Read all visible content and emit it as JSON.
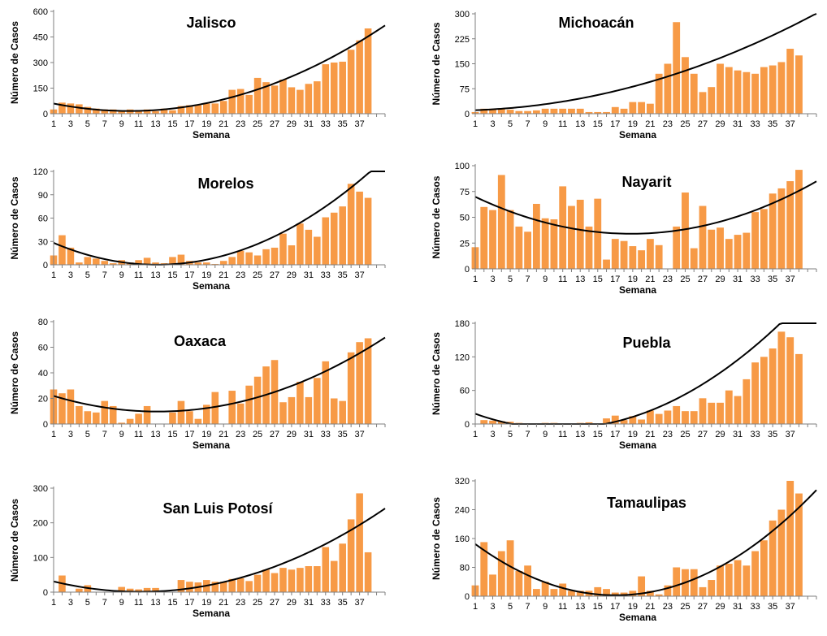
{
  "style": {
    "bar_color": "#F79A46",
    "trend_color": "#000000",
    "axis_color": "#7f7f7f"
  },
  "chart_data": [
    {
      "type": "bar",
      "title": "Jalisco",
      "xlabel": "Semana",
      "ylabel": "Número de Casos",
      "ylim": [
        0,
        600
      ],
      "yticks": [
        0,
        150,
        300,
        450,
        600
      ],
      "xlim": [
        1,
        40
      ],
      "x": [
        1,
        2,
        3,
        4,
        5,
        6,
        7,
        8,
        9,
        10,
        11,
        12,
        13,
        14,
        15,
        16,
        17,
        18,
        19,
        20,
        21,
        22,
        23,
        24,
        25,
        26,
        27,
        28,
        29,
        30,
        31,
        32,
        33,
        34,
        35,
        36,
        37,
        38
      ],
      "values": [
        25,
        65,
        60,
        55,
        40,
        30,
        25,
        25,
        20,
        25,
        20,
        25,
        15,
        30,
        20,
        45,
        50,
        50,
        60,
        60,
        75,
        140,
        145,
        110,
        210,
        185,
        165,
        200,
        155,
        140,
        175,
        190,
        290,
        300,
        305,
        375,
        430,
        500
      ],
      "trend": {
        "type": "polynomial",
        "coefficients": [
          70.0,
          -10.93,
          0.553
        ]
      }
    },
    {
      "type": "bar",
      "title": "Michoacán",
      "xlabel": "Semana",
      "ylabel": "Número de Casos",
      "ylim": [
        0,
        300
      ],
      "yticks": [
        0,
        75,
        150,
        225,
        300
      ],
      "xlim": [
        1,
        40
      ],
      "x": [
        1,
        2,
        3,
        4,
        5,
        6,
        7,
        8,
        9,
        10,
        11,
        12,
        13,
        14,
        15,
        16,
        17,
        18,
        19,
        20,
        21,
        22,
        23,
        24,
        25,
        26,
        27,
        28,
        29,
        30,
        31,
        32,
        33,
        34,
        35,
        36,
        37,
        38
      ],
      "values": [
        5,
        15,
        15,
        15,
        12,
        8,
        8,
        10,
        15,
        15,
        15,
        15,
        15,
        5,
        5,
        5,
        20,
        15,
        35,
        35,
        30,
        120,
        150,
        275,
        170,
        120,
        65,
        80,
        150,
        140,
        130,
        125,
        120,
        140,
        145,
        155,
        195,
        175
      ],
      "trend": {
        "type": "polynomial",
        "coefficients": [
          10.0,
          0.56,
          0.168
        ]
      }
    },
    {
      "type": "bar",
      "title": "Morelos",
      "xlabel": "Semana",
      "ylabel": "Número de Casos",
      "ylim": [
        0,
        120
      ],
      "yticks": [
        0,
        30,
        60,
        90,
        120
      ],
      "xlim": [
        1,
        40
      ],
      "x": [
        1,
        2,
        3,
        4,
        5,
        6,
        7,
        8,
        9,
        10,
        11,
        12,
        13,
        14,
        15,
        16,
        17,
        18,
        19,
        20,
        21,
        22,
        23,
        24,
        25,
        26,
        27,
        28,
        29,
        30,
        31,
        32,
        33,
        34,
        35,
        36,
        37,
        38
      ],
      "values": [
        12,
        38,
        22,
        3,
        10,
        8,
        5,
        2,
        6,
        3,
        6,
        9,
        3,
        2,
        10,
        13,
        5,
        3,
        3,
        1,
        5,
        10,
        18,
        16,
        12,
        20,
        22,
        40,
        25,
        53,
        45,
        36,
        61,
        67,
        75,
        104,
        94,
        86
      ],
      "trend": {
        "type": "polynomial",
        "coefficients": [
          33.0,
          -5.0,
          0.19
        ]
      }
    },
    {
      "type": "bar",
      "title": "Nayarit",
      "xlabel": "Semana",
      "ylabel": "Número de Casos",
      "ylim": [
        0,
        100
      ],
      "yticks": [
        0,
        25,
        50,
        75,
        100
      ],
      "xlim": [
        1,
        40
      ],
      "x": [
        1,
        2,
        3,
        4,
        5,
        6,
        7,
        8,
        9,
        10,
        11,
        12,
        13,
        14,
        15,
        16,
        17,
        18,
        19,
        20,
        21,
        22,
        23,
        24,
        25,
        26,
        27,
        28,
        29,
        30,
        31,
        32,
        33,
        34,
        35,
        36,
        37,
        38
      ],
      "values": [
        21,
        60,
        57,
        91,
        57,
        41,
        36,
        63,
        49,
        48,
        80,
        61,
        67,
        41,
        68,
        9,
        29,
        27,
        22,
        18,
        29,
        23,
        0,
        41,
        74,
        20,
        61,
        38,
        40,
        29,
        33,
        35,
        55,
        58,
        73,
        78,
        85,
        96
      ],
      "trend": {
        "type": "polynomial",
        "coefficients": [
          74.0,
          -4.25,
          0.113
        ]
      }
    },
    {
      "type": "bar",
      "title": "Oaxaca",
      "xlabel": "Semana",
      "ylabel": "Número de Casos",
      "ylim": [
        0,
        80
      ],
      "yticks": [
        0,
        20,
        40,
        60,
        80
      ],
      "xlim": [
        1,
        40
      ],
      "x": [
        1,
        2,
        3,
        4,
        5,
        6,
        7,
        8,
        9,
        10,
        11,
        12,
        13,
        14,
        15,
        16,
        17,
        18,
        19,
        20,
        21,
        22,
        23,
        24,
        25,
        26,
        27,
        28,
        29,
        30,
        31,
        32,
        33,
        34,
        35,
        36,
        37,
        38
      ],
      "values": [
        27,
        24,
        27,
        14,
        10,
        9,
        18,
        14,
        1,
        4,
        8,
        14,
        0,
        0,
        9,
        18,
        10,
        4,
        15,
        25,
        0,
        26,
        16,
        30,
        37,
        45,
        50,
        17,
        21,
        33,
        21,
        36,
        49,
        20,
        18,
        56,
        64,
        67
      ],
      "trend": {
        "type": "polynomial",
        "coefficients": [
          24.0,
          -2.15,
          0.081
        ]
      }
    },
    {
      "type": "bar",
      "title": "Puebla",
      "xlabel": "Semana",
      "ylabel": "Número de Casos",
      "ylim": [
        0,
        180
      ],
      "yticks": [
        0,
        60,
        120,
        180
      ],
      "xlim": [
        1,
        40
      ],
      "x": [
        1,
        2,
        3,
        4,
        5,
        6,
        7,
        8,
        9,
        10,
        11,
        12,
        13,
        14,
        15,
        16,
        17,
        18,
        19,
        20,
        21,
        22,
        23,
        24,
        25,
        26,
        27,
        28,
        29,
        30,
        31,
        32,
        33,
        34,
        35,
        36,
        37,
        38
      ],
      "values": [
        0,
        7,
        6,
        5,
        4,
        2,
        1,
        0,
        2,
        2,
        0,
        1,
        2,
        3,
        0,
        10,
        15,
        7,
        14,
        8,
        24,
        18,
        24,
        32,
        23,
        23,
        46,
        38,
        38,
        60,
        50,
        80,
        110,
        120,
        135,
        165,
        155,
        125
      ],
      "trend": {
        "type": "polynomial",
        "coefficients": [
          24.2,
          -6.17,
          0.293
        ]
      }
    },
    {
      "type": "bar",
      "title": "San Luis Potosí",
      "xlabel": "Semana",
      "ylabel": "Número de Casos",
      "ylim": [
        0,
        300
      ],
      "yticks": [
        0,
        100,
        200,
        300
      ],
      "xlim": [
        1,
        40
      ],
      "x": [
        1,
        2,
        3,
        4,
        5,
        6,
        7,
        8,
        9,
        10,
        11,
        12,
        13,
        14,
        15,
        16,
        17,
        18,
        19,
        20,
        21,
        22,
        23,
        24,
        25,
        26,
        27,
        28,
        29,
        30,
        31,
        32,
        33,
        34,
        35,
        36,
        37,
        38
      ],
      "values": [
        0,
        48,
        0,
        10,
        20,
        0,
        0,
        0,
        15,
        10,
        8,
        12,
        12,
        0,
        0,
        35,
        30,
        28,
        35,
        30,
        30,
        38,
        40,
        32,
        50,
        65,
        55,
        70,
        65,
        70,
        75,
        75,
        130,
        90,
        140,
        210,
        285,
        115
      ],
      "trend": {
        "type": "polynomial",
        "coefficients": [
          37.0,
          -6.45,
          0.289
        ]
      }
    },
    {
      "type": "bar",
      "title": "Tamaulipas",
      "xlabel": "Semana",
      "ylabel": "Número de Casos",
      "ylim": [
        0,
        320
      ],
      "yticks": [
        0,
        80,
        160,
        240,
        320
      ],
      "xlim": [
        1,
        40
      ],
      "x": [
        1,
        2,
        3,
        4,
        5,
        6,
        7,
        8,
        9,
        10,
        11,
        12,
        13,
        14,
        15,
        16,
        17,
        18,
        19,
        20,
        21,
        22,
        23,
        24,
        25,
        26,
        27,
        28,
        29,
        30,
        31,
        32,
        33,
        34,
        35,
        36,
        37,
        38
      ],
      "values": [
        30,
        150,
        60,
        125,
        155,
        70,
        85,
        20,
        40,
        20,
        35,
        15,
        15,
        15,
        25,
        20,
        10,
        10,
        15,
        55,
        15,
        5,
        30,
        80,
        75,
        75,
        25,
        45,
        85,
        90,
        100,
        85,
        125,
        155,
        210,
        240,
        320,
        285
      ],
      "trend": {
        "type": "polynomial",
        "coefficients": [
          163.0,
          -18.83,
          0.553
        ]
      }
    }
  ]
}
